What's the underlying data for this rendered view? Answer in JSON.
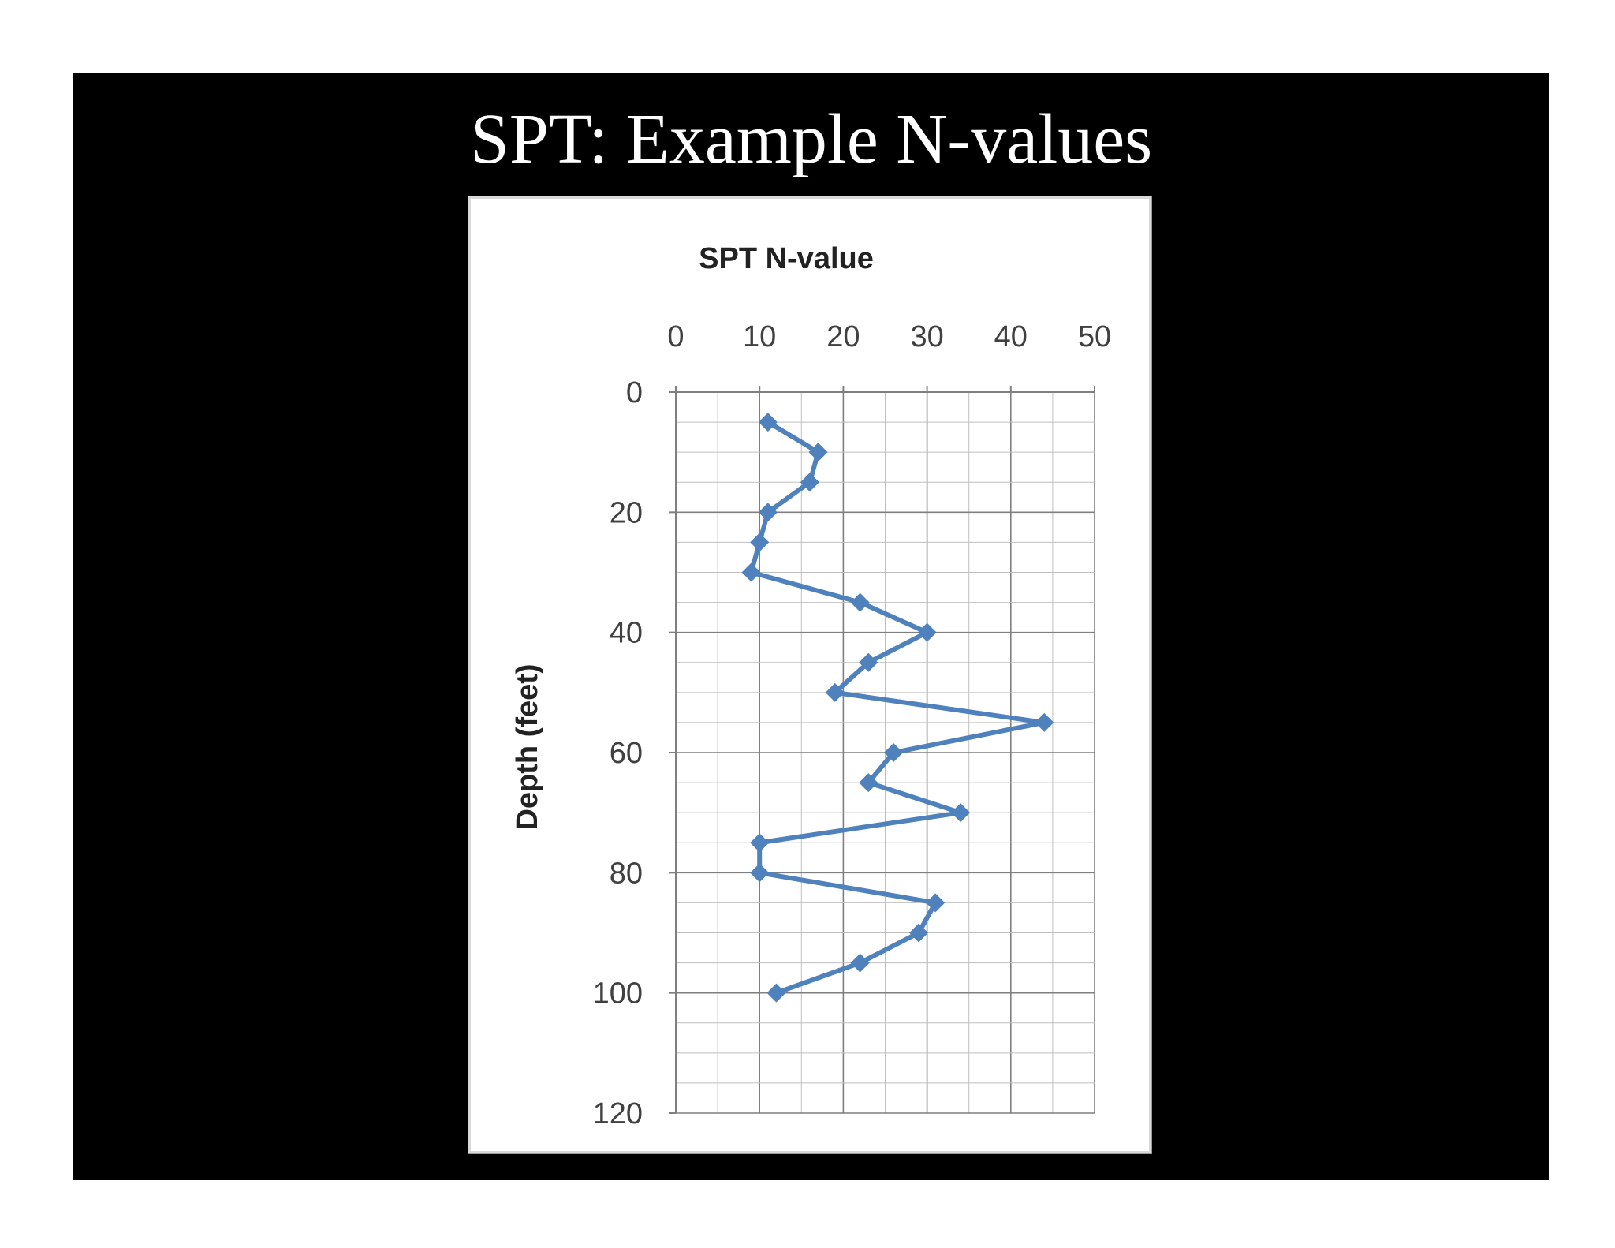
{
  "slide": {
    "title": "SPT: Example N-values"
  },
  "chart_data": {
    "type": "line",
    "title": "SPT N-value",
    "xlabel": "",
    "ylabel": "Depth (feet)",
    "x_axis_position": "top",
    "y_axis_inverted": true,
    "xlim": [
      0,
      50
    ],
    "ylim": [
      0,
      120
    ],
    "x_ticks": [
      0,
      10,
      20,
      30,
      40,
      50
    ],
    "y_ticks": [
      0,
      20,
      40,
      60,
      80,
      100,
      120
    ],
    "x_tick_labels": [
      "0",
      "10",
      "20",
      "30",
      "40",
      "50"
    ],
    "y_tick_labels": [
      "0",
      "20",
      "40",
      "60",
      "80",
      "100",
      "120"
    ],
    "grid": true,
    "marker": "diamond",
    "series_color": "#4f81bd",
    "series": [
      {
        "points": [
          {
            "n": 11,
            "depth": 5
          },
          {
            "n": 17,
            "depth": 10
          },
          {
            "n": 16,
            "depth": 15
          },
          {
            "n": 11,
            "depth": 20
          },
          {
            "n": 10,
            "depth": 25
          },
          {
            "n": 9,
            "depth": 30
          },
          {
            "n": 22,
            "depth": 35
          },
          {
            "n": 30,
            "depth": 40
          },
          {
            "n": 23,
            "depth": 45
          },
          {
            "n": 19,
            "depth": 50
          },
          {
            "n": 44,
            "depth": 55
          },
          {
            "n": 26,
            "depth": 60
          },
          {
            "n": 23,
            "depth": 65
          },
          {
            "n": 34,
            "depth": 70
          },
          {
            "n": 10,
            "depth": 75
          },
          {
            "n": 10,
            "depth": 80
          },
          {
            "n": 31,
            "depth": 85
          },
          {
            "n": 29,
            "depth": 90
          },
          {
            "n": 22,
            "depth": 95
          },
          {
            "n": 12,
            "depth": 100
          }
        ]
      }
    ]
  }
}
